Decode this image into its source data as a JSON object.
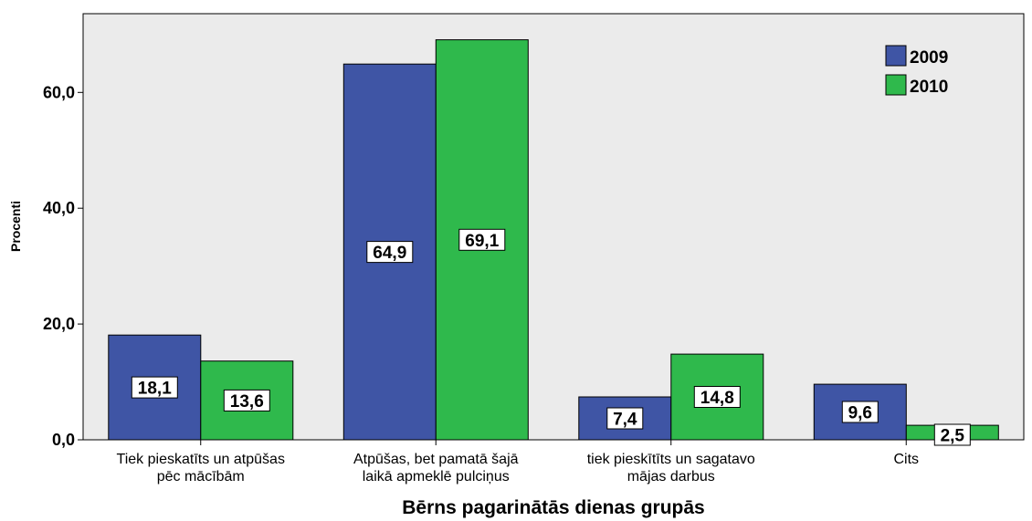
{
  "chart_data": {
    "type": "bar",
    "title": "",
    "xlabel": "Bērns pagarinātās dienas grupās",
    "ylabel": "Procenti",
    "ylim": [
      0,
      72
    ],
    "yticks": [
      "0,0",
      "20,0",
      "40,0",
      "60,0"
    ],
    "ytick_values": [
      0,
      20,
      40,
      60
    ],
    "grid": false,
    "legend_position": "top-right",
    "categories": [
      [
        "Tiek pieskatīts un atpūšas",
        "pēc mācībām"
      ],
      [
        "Atpūšas, bet pamatā šajā",
        "laikā apmeklē pulciņus"
      ],
      [
        "tiek pieskītīts un sagatavo",
        "mājas darbus"
      ],
      [
        "Cits"
      ]
    ],
    "series": [
      {
        "name": "2009",
        "color": "#3f55a5",
        "values": [
          18.1,
          64.9,
          7.4,
          9.6
        ],
        "labels": [
          "18,1",
          "64,9",
          "7,4",
          "9,6"
        ]
      },
      {
        "name": "2010",
        "color": "#2fb94c",
        "values": [
          13.6,
          69.1,
          14.8,
          2.5
        ],
        "labels": [
          "13,6",
          "69,1",
          "14,8",
          "2,5"
        ]
      }
    ]
  }
}
